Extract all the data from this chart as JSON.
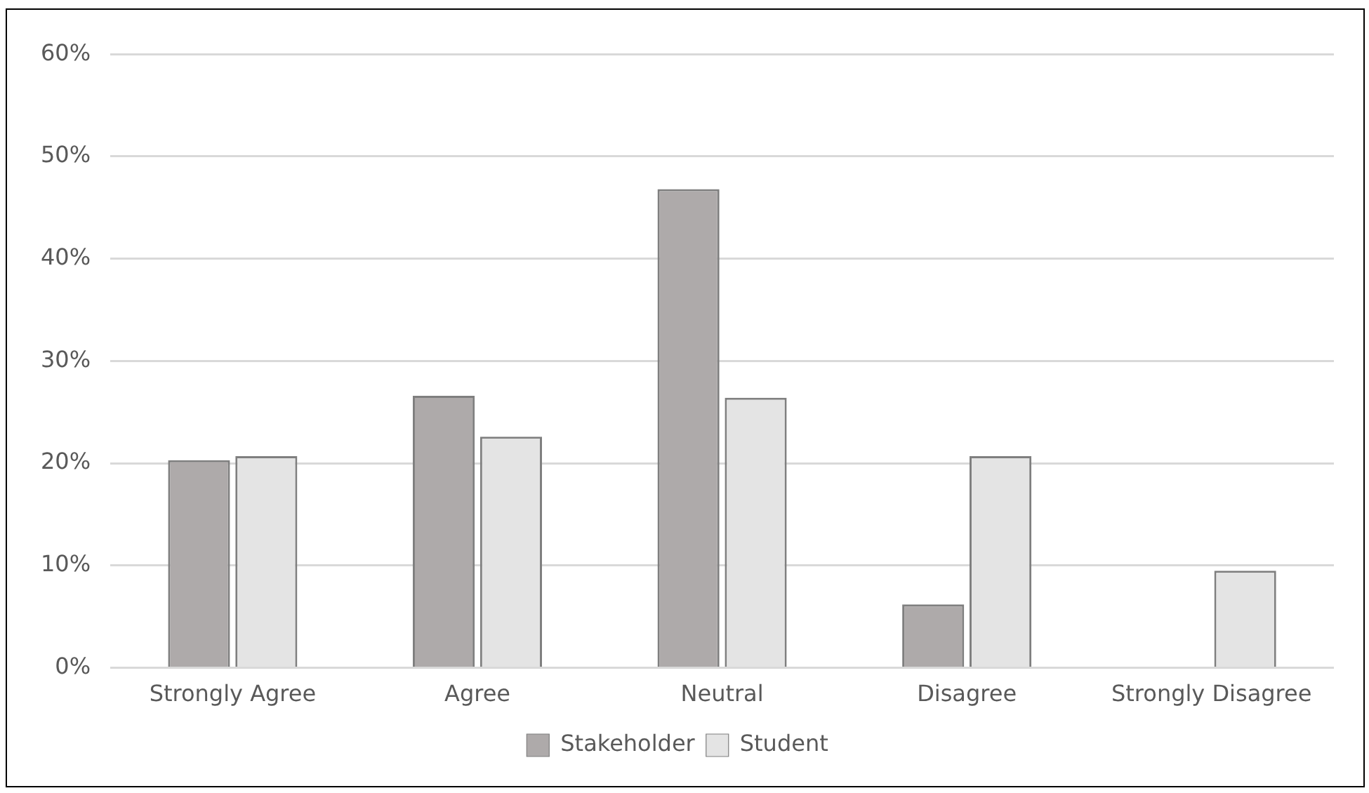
{
  "chart_data": {
    "type": "bar",
    "categories": [
      "Strongly Agree",
      "Agree",
      "Neutral",
      "Disagree",
      "Strongly Disagree"
    ],
    "series": [
      {
        "name": "Stakeholder",
        "color": "#aeaaaa",
        "values": [
          20.3,
          26.6,
          46.8,
          6.2,
          0
        ]
      },
      {
        "name": "Student",
        "color": "#e4e4e4",
        "values": [
          20.7,
          22.6,
          26.4,
          20.7,
          9.5
        ]
      }
    ],
    "ylim": [
      0,
      60
    ],
    "yticks": [
      {
        "value": 0,
        "label": "0%"
      },
      {
        "value": 10,
        "label": "10%"
      },
      {
        "value": 20,
        "label": "20%"
      },
      {
        "value": 30,
        "label": "30%"
      },
      {
        "value": 40,
        "label": "40%"
      },
      {
        "value": 50,
        "label": "50%"
      },
      {
        "value": 60,
        "label": "60%"
      }
    ],
    "grid": "y",
    "legend": "bottom"
  }
}
